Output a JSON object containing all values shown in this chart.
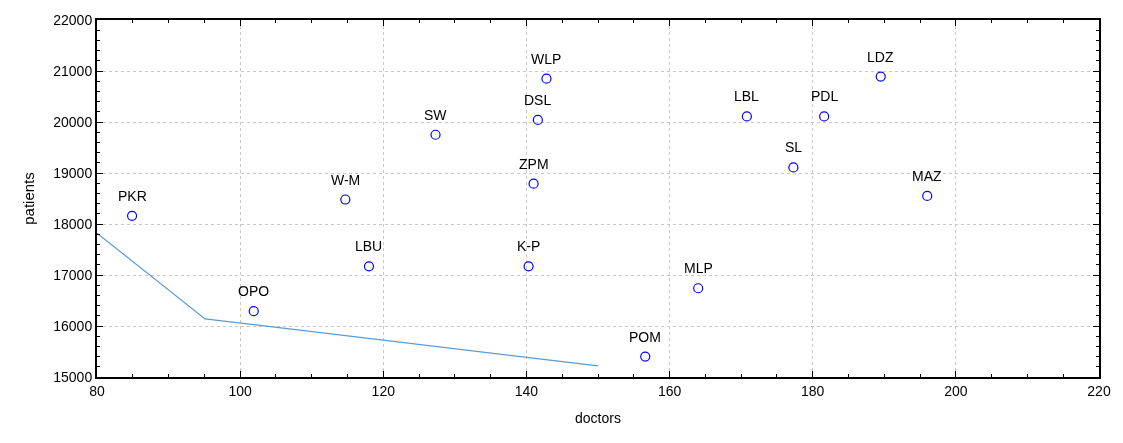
{
  "chart_data": {
    "type": "scatter",
    "xlabel": "doctors",
    "ylabel": "patients",
    "xlim": [
      80,
      220
    ],
    "xticks": [
      80,
      100,
      120,
      140,
      160,
      180,
      200,
      220
    ],
    "ylim": [
      15000,
      22000
    ],
    "yticks": [
      15000,
      16000,
      17000,
      18000,
      19000,
      20000,
      21000,
      22000
    ],
    "grid": true,
    "marker": "circle",
    "series": [
      {
        "color": "#0000ff",
        "x": [
          84.9,
          101.9,
          114.7,
          118.0,
          127.3,
          140.3,
          141.0,
          141.6,
          142.8,
          156.6,
          164.0,
          170.8,
          181.6,
          177.3,
          189.5,
          196.0
        ],
        "values": [
          18160,
          16290,
          18480,
          17170,
          19750,
          17170,
          18790,
          20040,
          20850,
          15400,
          16740,
          20110,
          20110,
          19110,
          20890,
          18550
        ]
      },
      {
        "type": "line",
        "color": "#5b9bd5",
        "marker": "none",
        "line_style": "solid",
        "x": [
          80,
          95.1,
          150.0
        ],
        "values": [
          17820,
          16140,
          15220
        ]
      }
    ],
    "annotations": [
      {
        "text": "PKR",
        "x": 84.9,
        "y": 18160
      },
      {
        "text": "OPO",
        "x": 101.9,
        "y": 16290
      },
      {
        "text": "W-M",
        "x": 114.7,
        "y": 18480
      },
      {
        "text": "LBU",
        "x": 118.0,
        "y": 17170
      },
      {
        "text": "SW",
        "x": 127.3,
        "y": 19750
      },
      {
        "text": "K-P",
        "x": 140.3,
        "y": 17170
      },
      {
        "text": "ZPM",
        "x": 141.0,
        "y": 18790
      },
      {
        "text": "DSL",
        "x": 141.6,
        "y": 20040
      },
      {
        "text": "WLP",
        "x": 142.8,
        "y": 20850
      },
      {
        "text": "POM",
        "x": 156.6,
        "y": 15400
      },
      {
        "text": "MLP",
        "x": 164.0,
        "y": 16740
      },
      {
        "text": "LBL",
        "x": 170.8,
        "y": 20110
      },
      {
        "text": "PDL",
        "x": 181.6,
        "y": 20110
      },
      {
        "text": "SL",
        "x": 177.3,
        "y": 19110
      },
      {
        "text": "LDZ",
        "x": 189.5,
        "y": 20890
      },
      {
        "text": "MAZ",
        "x": 196.0,
        "y": 18550
      }
    ]
  }
}
